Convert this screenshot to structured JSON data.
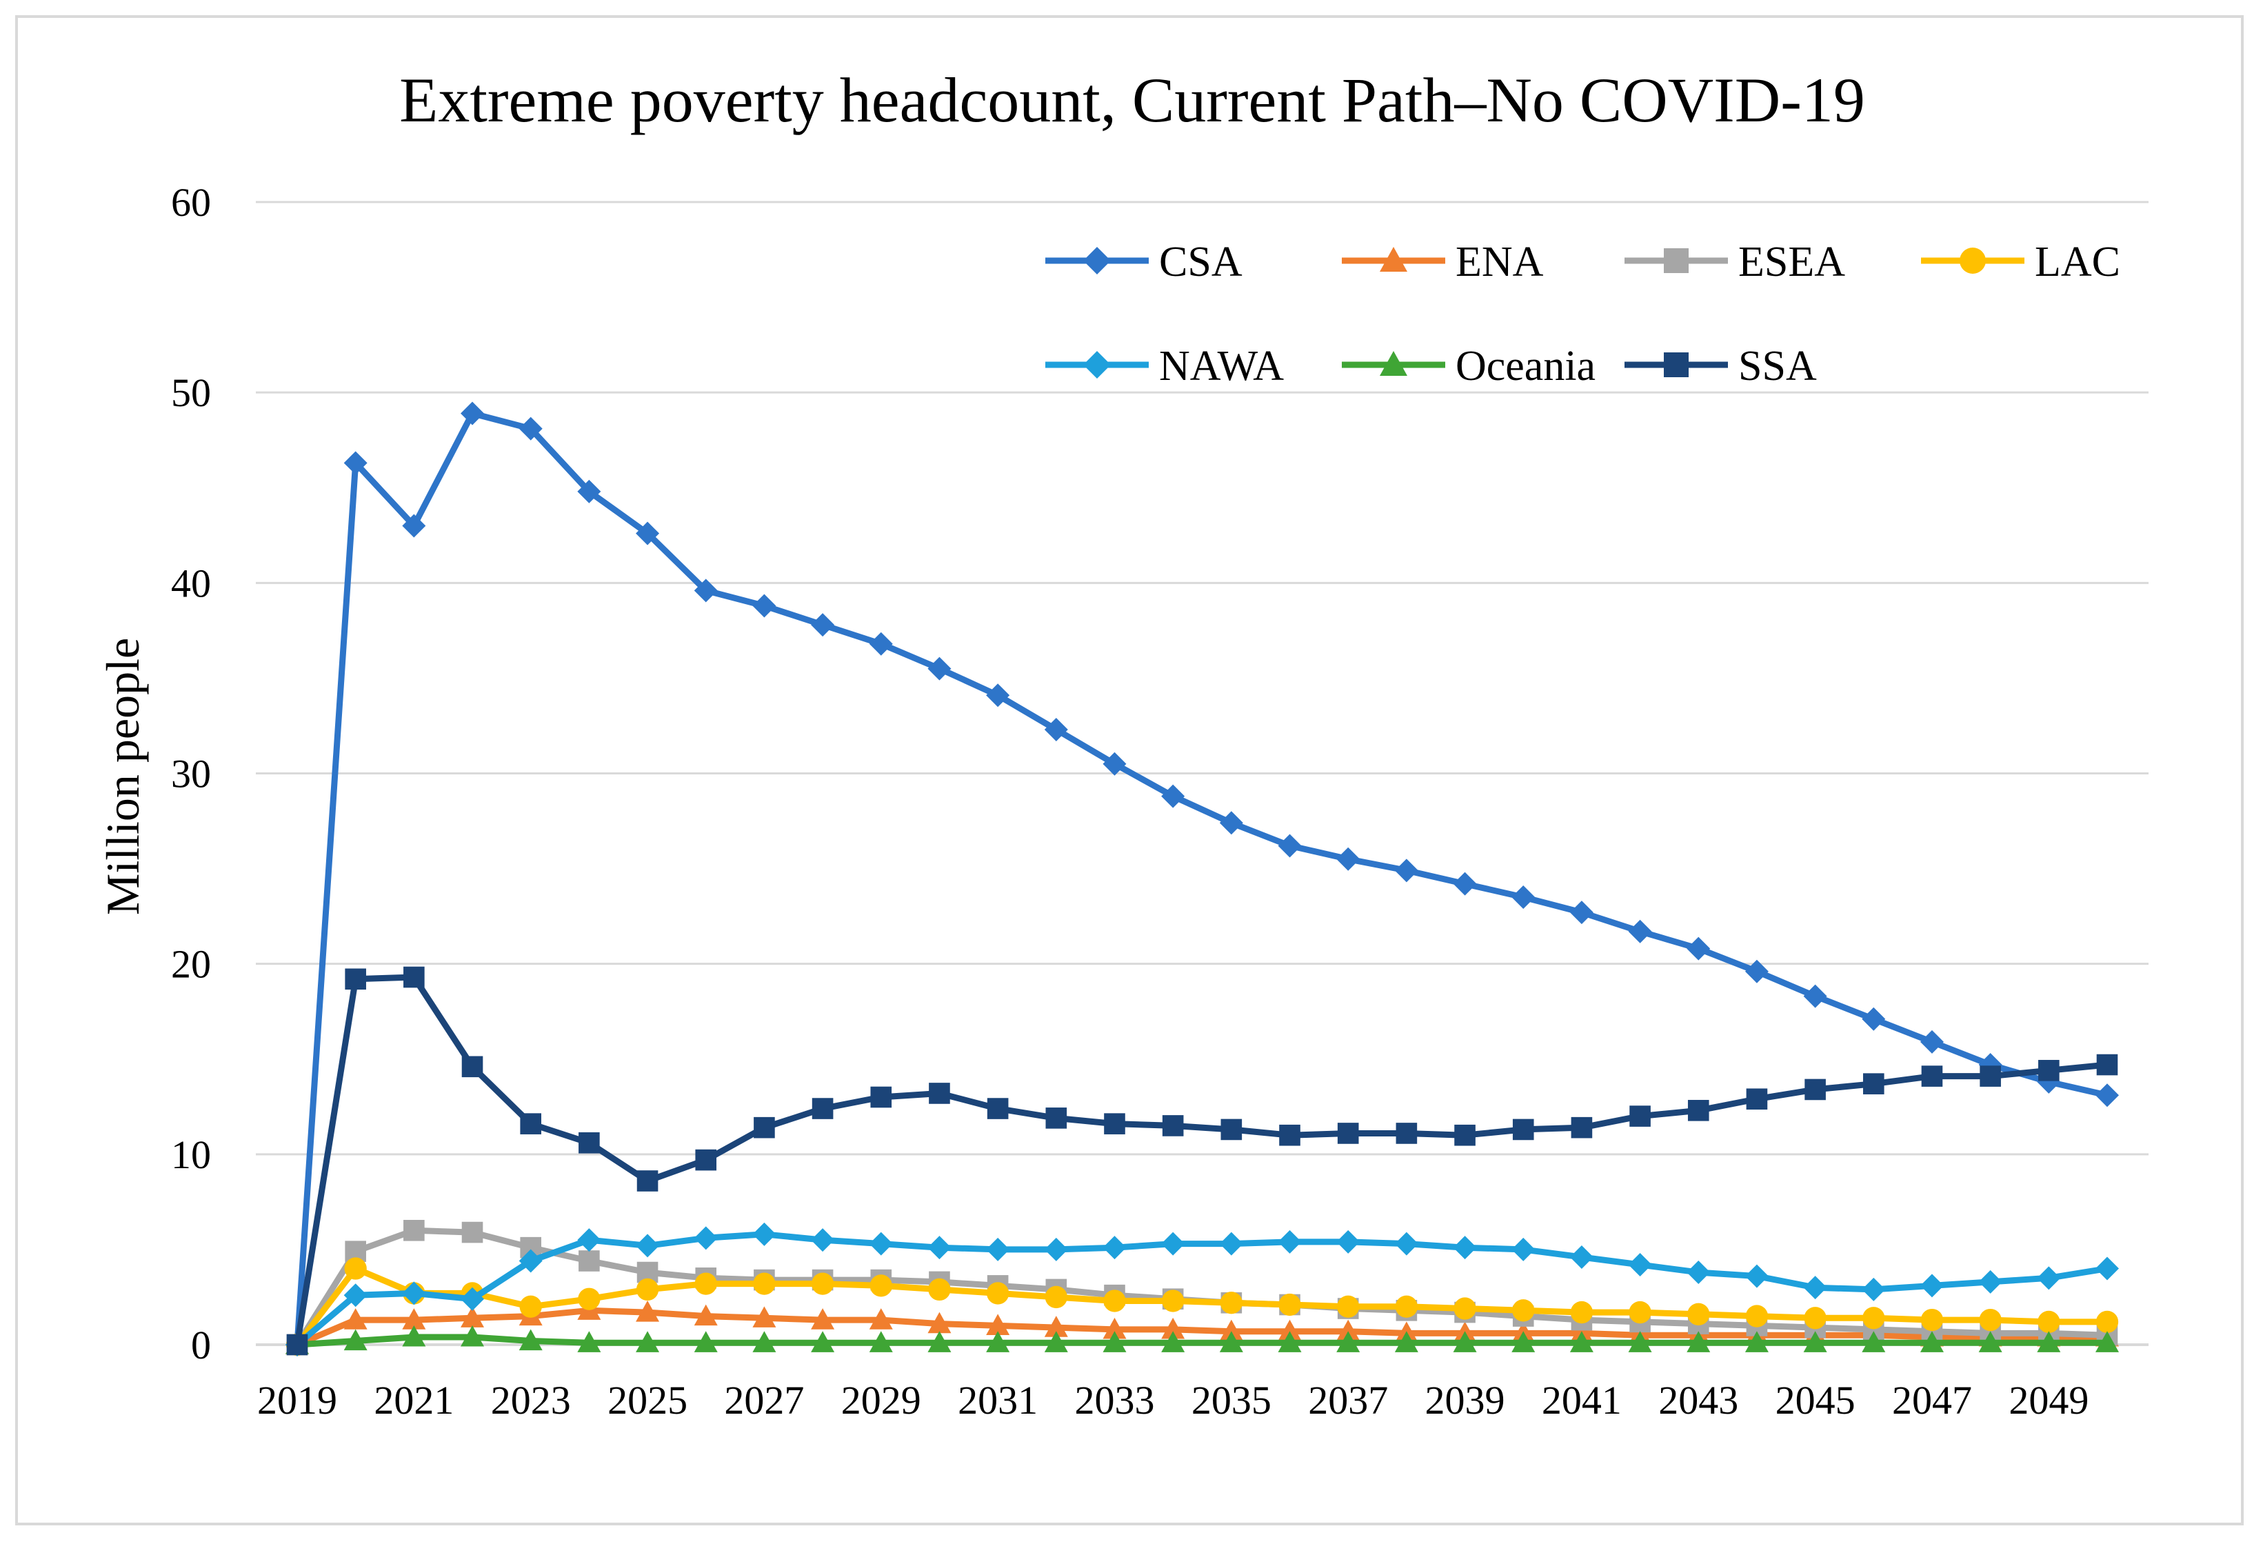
{
  "chart_data": {
    "type": "line",
    "title": "Extreme poverty headcount, Current Path–No COVID-19",
    "xlabel": "",
    "ylabel": "Million people",
    "ylim": [
      0,
      60
    ],
    "yticks": [
      "0",
      "10",
      "20",
      "30",
      "40",
      "50",
      "60"
    ],
    "x": [
      2019,
      2020,
      2021,
      2022,
      2023,
      2024,
      2025,
      2026,
      2027,
      2028,
      2029,
      2030,
      2031,
      2032,
      2033,
      2034,
      2035,
      2036,
      2037,
      2038,
      2039,
      2040,
      2041,
      2042,
      2043,
      2044,
      2045,
      2046,
      2047,
      2048,
      2049,
      2050
    ],
    "xtick_labels": [
      "2019",
      "2021",
      "2023",
      "2025",
      "2027",
      "2029",
      "2031",
      "2033",
      "2035",
      "2037",
      "2039",
      "2041",
      "2043",
      "2045",
      "2047",
      "2049"
    ],
    "grid": true,
    "legend_position": "top-right",
    "series": [
      {
        "name": "CSA",
        "color": "#2e75c9",
        "marker": "diamond",
        "values": [
          0,
          46.3,
          43.0,
          48.9,
          48.1,
          44.8,
          42.6,
          39.6,
          38.8,
          37.8,
          36.8,
          35.5,
          34.1,
          32.3,
          30.5,
          28.8,
          27.4,
          26.2,
          25.5,
          24.9,
          24.2,
          23.5,
          22.7,
          21.7,
          20.8,
          19.6,
          18.3,
          17.1,
          15.9,
          14.7,
          13.8,
          13.1
        ]
      },
      {
        "name": "ENA",
        "color": "#f07e2e",
        "marker": "triangle",
        "values": [
          0,
          1.3,
          1.3,
          1.4,
          1.5,
          1.8,
          1.7,
          1.5,
          1.4,
          1.3,
          1.3,
          1.1,
          1.0,
          0.9,
          0.8,
          0.8,
          0.7,
          0.7,
          0.7,
          0.6,
          0.6,
          0.6,
          0.6,
          0.5,
          0.5,
          0.5,
          0.5,
          0.5,
          0.4,
          0.4,
          0.4,
          0.4
        ]
      },
      {
        "name": "ESEA",
        "color": "#a6a6a6",
        "marker": "square",
        "values": [
          0,
          4.9,
          6.0,
          5.9,
          5.1,
          4.4,
          3.8,
          3.5,
          3.4,
          3.4,
          3.4,
          3.3,
          3.1,
          2.9,
          2.6,
          2.4,
          2.2,
          2.1,
          1.9,
          1.8,
          1.7,
          1.5,
          1.3,
          1.2,
          1.1,
          1.0,
          0.9,
          0.8,
          0.7,
          0.6,
          0.6,
          0.5
        ]
      },
      {
        "name": "LAC",
        "color": "#ffc000",
        "marker": "circle",
        "values": [
          0,
          4.0,
          2.7,
          2.7,
          2.0,
          2.4,
          2.9,
          3.2,
          3.2,
          3.2,
          3.1,
          2.9,
          2.7,
          2.5,
          2.3,
          2.3,
          2.2,
          2.1,
          2.0,
          2.0,
          1.9,
          1.8,
          1.7,
          1.7,
          1.6,
          1.5,
          1.4,
          1.4,
          1.3,
          1.3,
          1.2,
          1.2
        ]
      },
      {
        "name": "NAWA",
        "color": "#1ea0dc",
        "marker": "diamond",
        "values": [
          0,
          2.6,
          2.7,
          2.4,
          4.4,
          5.5,
          5.2,
          5.6,
          5.8,
          5.5,
          5.3,
          5.1,
          5.0,
          5.0,
          5.1,
          5.3,
          5.3,
          5.4,
          5.4,
          5.3,
          5.1,
          5.0,
          4.6,
          4.2,
          3.8,
          3.6,
          3.0,
          2.9,
          3.1,
          3.3,
          3.5,
          4.0
        ]
      },
      {
        "name": "Oceania",
        "color": "#3fa535",
        "marker": "triangle",
        "values": [
          0,
          0.2,
          0.4,
          0.4,
          0.2,
          0.1,
          0.1,
          0.1,
          0.1,
          0.1,
          0.1,
          0.1,
          0.1,
          0.1,
          0.1,
          0.1,
          0.1,
          0.1,
          0.1,
          0.1,
          0.1,
          0.1,
          0.1,
          0.1,
          0.1,
          0.1,
          0.1,
          0.1,
          0.1,
          0.1,
          0.1,
          0.1
        ]
      },
      {
        "name": "SSA",
        "color": "#1b4478",
        "marker": "square",
        "values": [
          0,
          19.2,
          19.3,
          14.6,
          11.6,
          10.6,
          8.6,
          9.7,
          11.4,
          12.4,
          13.0,
          13.2,
          12.4,
          11.9,
          11.6,
          11.5,
          11.3,
          11.0,
          11.1,
          11.1,
          11.0,
          11.3,
          11.4,
          12.0,
          12.3,
          12.9,
          13.4,
          13.7,
          14.1,
          14.1,
          14.4,
          14.7
        ]
      }
    ]
  }
}
